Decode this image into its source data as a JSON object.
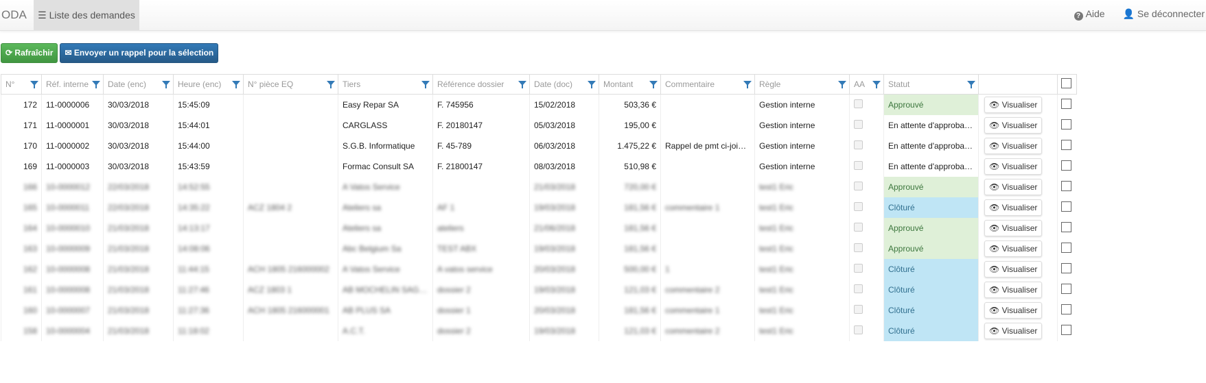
{
  "nav": {
    "brand": "ODA",
    "tab": "Liste des demandes",
    "help": "Aide",
    "logout": "Se déconnecter"
  },
  "toolbar": {
    "refresh": "Rafraîchir",
    "reminder": "Envoyer un rappel pour la sélection"
  },
  "columns": [
    "N°",
    "Réf. interne",
    "Date (enc)",
    "Heure (enc)",
    "N° pièce EQ",
    "Tiers",
    "Référence dossier",
    "Date (doc)",
    "Montant",
    "Commentaire",
    "Règle",
    "AA",
    "Statut"
  ],
  "view_label": "Visualiser",
  "status_colors": {
    "Approuvé": "#dff0d8",
    "Clôturé": "#bfe5f5"
  },
  "rows": [
    [
      "172",
      "11-0000006",
      "30/03/2018",
      "15:45:09",
      "",
      "Easy Repar SA",
      "F. 745956",
      "15/02/2018",
      "503,36 €",
      "",
      "Gestion interne",
      "",
      "Approuvé"
    ],
    [
      "171",
      "11-0000001",
      "30/03/2018",
      "15:44:01",
      "",
      "CARGLASS",
      "F. 20180147",
      "05/03/2018",
      "195,00 €",
      "",
      "Gestion interne",
      "",
      "En attente d'approbation"
    ],
    [
      "170",
      "11-0000002",
      "30/03/2018",
      "15:44:00",
      "",
      "S.G.B. Informatique",
      "F. 45-789",
      "06/03/2018",
      "1.475,22 €",
      "Rappel de pmt ci-joint p...",
      "Gestion interne",
      "",
      "En attente d'approbation"
    ],
    [
      "169",
      "11-0000003",
      "30/03/2018",
      "15:43:59",
      "",
      "Formac Consult SA",
      "F. 21800147",
      "08/03/2018",
      "510,98 €",
      "",
      "Gestion interne",
      "",
      "En attente d'approbation"
    ],
    [
      "166",
      "10-0000012",
      "22/03/2018",
      "14:52:55",
      "",
      "A Vatos Service",
      "",
      "21/03/2018",
      "720,00 €",
      "",
      "test1 Eric",
      "",
      "Approuvé"
    ],
    [
      "165",
      "10-0000011",
      "22/03/2018",
      "14:35:22",
      "ACZ 1804 2",
      "Ateliers sa",
      "AF 1",
      "19/03/2018",
      "181,56 €",
      "commentaire 1",
      "test1 Eric",
      "",
      "Clôturé"
    ],
    [
      "164",
      "10-0000010",
      "21/03/2018",
      "14:13:17",
      "",
      "Ateliers sa",
      "ateliers",
      "21/06/2018",
      "181,56 €",
      "",
      "test1 Eric",
      "",
      "Approuvé"
    ],
    [
      "163",
      "10-0000009",
      "21/03/2018",
      "14:08:06",
      "",
      "Abc Belgium Sa",
      "TEST ABX",
      "19/03/2018",
      "181,56 €",
      "",
      "test1 Eric",
      "",
      "Approuvé"
    ],
    [
      "162",
      "10-0000008",
      "21/03/2018",
      "11:44:15",
      "ACH 1805 216000002",
      "A Vatos Service",
      "A vatos service",
      "20/03/2018",
      "500,00 €",
      "1",
      "test1 Eric",
      "",
      "Clôturé"
    ],
    [
      "161",
      "10-0000008",
      "21/03/2018",
      "11:27:46",
      "ACZ 1803 1",
      "AB MOCHELIN SAGN...",
      "dossier 2",
      "19/03/2018",
      "121,03 €",
      "commentaire 2",
      "test1 Eric",
      "",
      "Clôturé"
    ],
    [
      "160",
      "10-0000007",
      "21/03/2018",
      "11:27:36",
      "ACH 1805 216000001",
      "AB PLUS SA",
      "dossier 1",
      "20/03/2018",
      "181,56 €",
      "commentaire 1",
      "test1 Eric",
      "",
      "Clôturé"
    ],
    [
      "158",
      "10-0000004",
      "21/03/2018",
      "11:18:02",
      "",
      "A.C.T.",
      "dossier 2",
      "19/03/2018",
      "121,03 €",
      "commentaire 2",
      "test1 Eric",
      "",
      "Clôturé"
    ]
  ]
}
